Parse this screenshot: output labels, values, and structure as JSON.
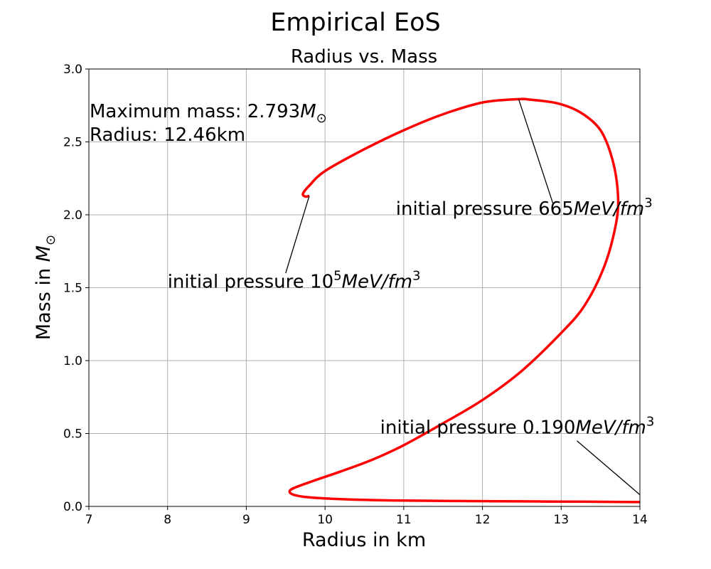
{
  "suptitle": "Empirical EoS",
  "chart_data": {
    "type": "line",
    "title": "Radius vs. Mass",
    "xlabel": "Radius in km",
    "ylabel_text": "Mass in ",
    "ylabel_symbol": "M",
    "ylabel_sub": "⊙",
    "xlim": [
      7,
      14
    ],
    "ylim": [
      0,
      3.0
    ],
    "grid": true,
    "xticks": [
      7,
      8,
      9,
      10,
      11,
      12,
      13,
      14
    ],
    "yticks": [
      0.0,
      0.5,
      1.0,
      1.5,
      2.0,
      2.5,
      3.0
    ],
    "xtick_labels": [
      "7",
      "8",
      "9",
      "10",
      "11",
      "12",
      "13",
      "14"
    ],
    "ytick_labels": [
      "0.0",
      "0.5",
      "1.0",
      "1.5",
      "2.0",
      "2.5",
      "3.0"
    ],
    "series": [
      {
        "color": "#ff0000",
        "x": [
          14.0,
          13.0,
          12.0,
          11.0,
          10.5,
          10.0,
          9.75,
          9.6,
          9.55,
          9.6,
          9.85,
          10.2,
          10.6,
          11.0,
          11.5,
          12.0,
          12.5,
          13.0,
          13.3,
          13.55,
          13.7,
          13.72,
          13.65,
          13.5,
          13.25,
          12.95,
          12.6,
          12.46,
          12.0,
          11.5,
          11.0,
          10.5,
          10.0,
          9.8,
          9.72,
          9.75,
          9.8
        ],
        "y": [
          0.03,
          0.033,
          0.036,
          0.04,
          0.045,
          0.055,
          0.065,
          0.08,
          0.1,
          0.125,
          0.175,
          0.24,
          0.32,
          0.42,
          0.57,
          0.73,
          0.93,
          1.19,
          1.38,
          1.65,
          1.95,
          2.15,
          2.38,
          2.58,
          2.7,
          2.765,
          2.79,
          2.793,
          2.77,
          2.69,
          2.58,
          2.45,
          2.3,
          2.2,
          2.145,
          2.125,
          2.13
        ]
      }
    ],
    "info_line1_text": "Maximum mass: 2.793",
    "info_line1_symbol": "M",
    "info_line1_sub": "⊙",
    "info_line2": "Radius: 12.46km",
    "annotations": [
      {
        "prefix": "initial pressure 665",
        "math": "MeV/fm",
        "sup": "3",
        "target": [
          12.46,
          2.793
        ],
        "label_pos": [
          10.9,
          2.0
        ],
        "arrow_from": [
          12.9,
          2.07
        ]
      },
      {
        "prefix": "initial pressure 10",
        "prefix_sup": "5",
        "math": "MeV/fm",
        "sup": "3",
        "target": [
          9.8,
          2.13
        ],
        "label_pos": [
          8.0,
          1.5
        ],
        "arrow_from": [
          9.5,
          1.6
        ]
      },
      {
        "prefix": "initial pressure 0.190",
        "math": "MeV/fm",
        "sup": "3",
        "target": [
          14.0,
          0.08
        ],
        "label_pos": [
          10.7,
          0.5
        ],
        "arrow_from": [
          13.2,
          0.45
        ]
      }
    ]
  }
}
